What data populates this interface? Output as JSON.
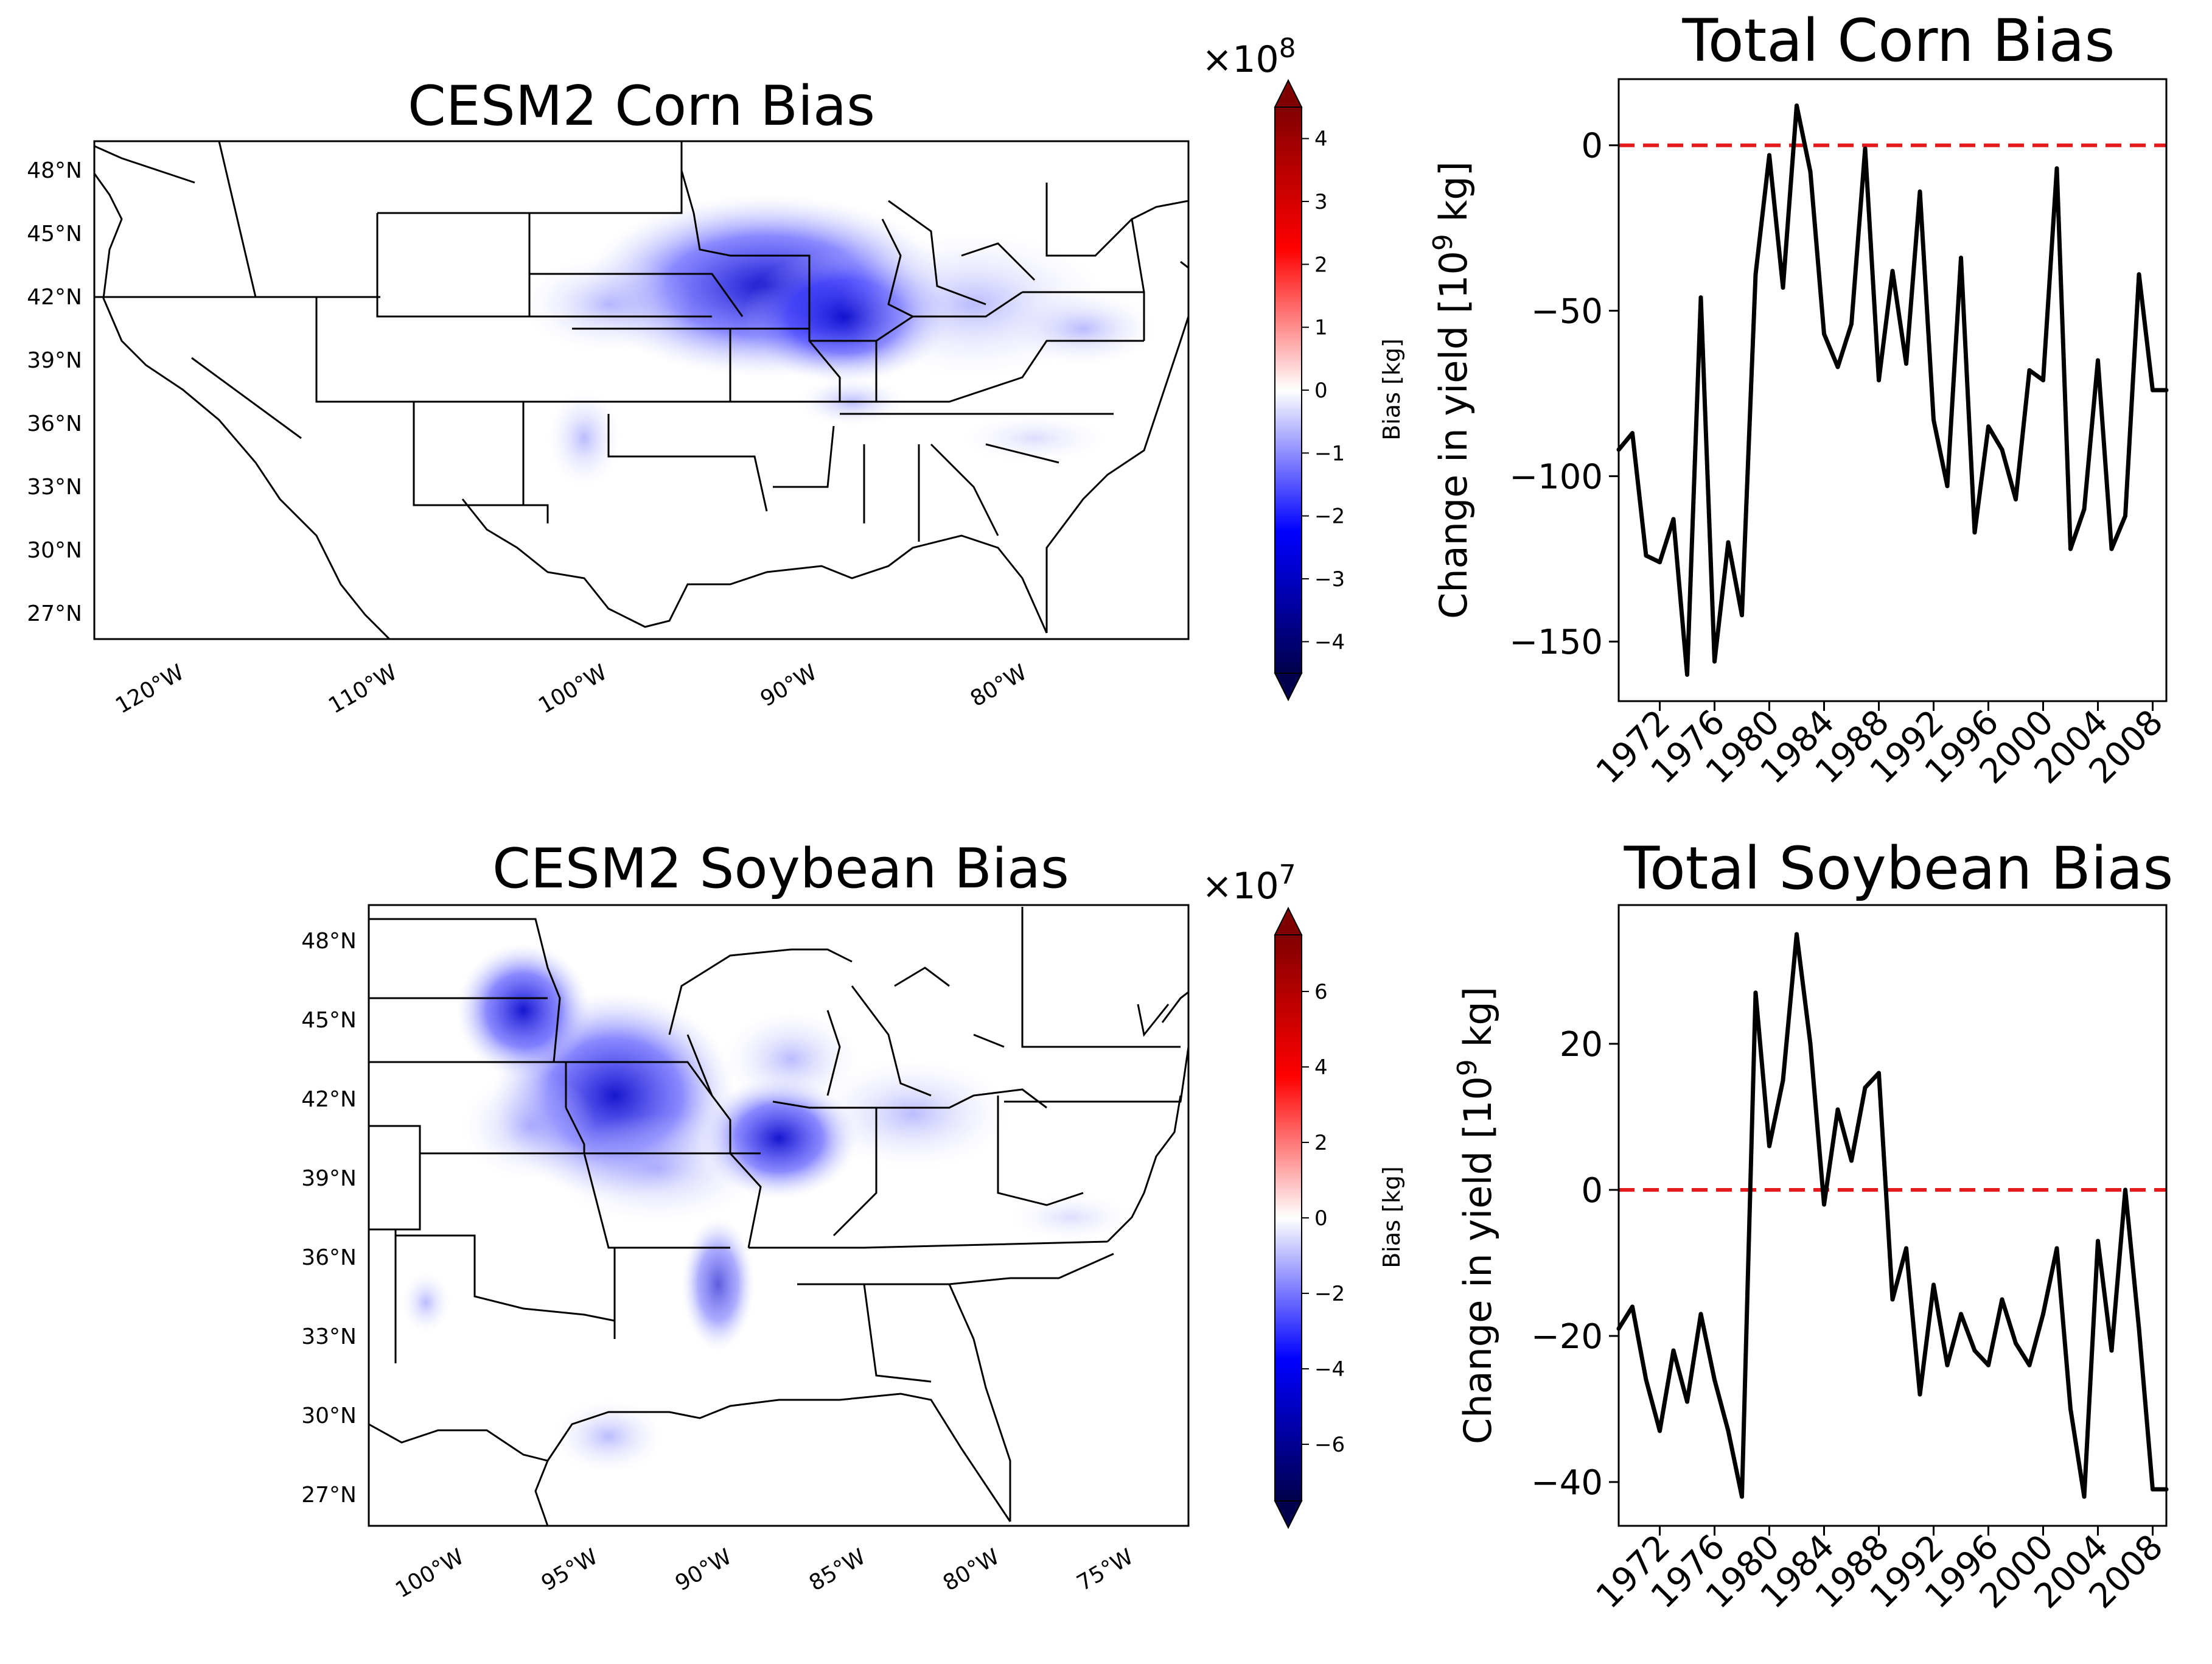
{
  "maps": [
    {
      "title": "CESM2 Corn Bias",
      "lat_ticks": [
        "48°N",
        "45°N",
        "42°N",
        "39°N",
        "36°N",
        "33°N",
        "30°N",
        "27°N"
      ],
      "lon_ticks": [
        "120°W",
        "110°W",
        "100°W",
        "90°W",
        "80°W"
      ],
      "colorbar": {
        "exponent": "×10",
        "exponent_power": "8",
        "label": "Bias [kg]",
        "ticks": [
          "4",
          "3",
          "2",
          "1",
          "0",
          "−1",
          "−2",
          "−3",
          "−4"
        ],
        "range": [
          -4.5,
          4.5
        ]
      }
    },
    {
      "title": "CESM2 Soybean Bias",
      "lat_ticks": [
        "48°N",
        "45°N",
        "42°N",
        "39°N",
        "36°N",
        "33°N",
        "30°N",
        "27°N"
      ],
      "lon_ticks": [
        "100°W",
        "95°W",
        "90°W",
        "85°W",
        "80°W",
        "75°W"
      ],
      "colorbar": {
        "exponent": "×10",
        "exponent_power": "7",
        "label": "Bias [kg]",
        "ticks": [
          "6",
          "4",
          "2",
          "0",
          "−2",
          "−4",
          "−6"
        ],
        "range": [
          -7.5,
          7.5
        ]
      }
    }
  ],
  "chart_data": [
    {
      "type": "line",
      "title": "Total Corn Bias",
      "ylabel_prefix": "Change in yield [10",
      "ylabel_power": "9",
      "ylabel_suffix": " kg]",
      "ylim": [
        -168,
        20
      ],
      "xlim": [
        1969,
        2009
      ],
      "yticks": [
        "0",
        "−50",
        "−100",
        "−150"
      ],
      "ytick_values": [
        0,
        -50,
        -100,
        -150
      ],
      "xticks": [
        "1972",
        "1976",
        "1980",
        "1984",
        "1988",
        "1992",
        "1996",
        "2000",
        "2004",
        "2008"
      ],
      "xtick_values": [
        1972,
        1976,
        1980,
        1984,
        1988,
        1992,
        1996,
        2000,
        2004,
        2008
      ],
      "reference_line": 0,
      "reference_color": "#e41a1c",
      "line_color": "#000000",
      "x": [
        1969,
        1970,
        1971,
        1972,
        1973,
        1974,
        1975,
        1976,
        1977,
        1978,
        1979,
        1980,
        1981,
        1982,
        1983,
        1984,
        1985,
        1986,
        1987,
        1988,
        1989,
        1990,
        1991,
        1992,
        1993,
        1994,
        1995,
        1996,
        1997,
        1998,
        1999,
        2000,
        2001,
        2002,
        2003,
        2004,
        2005,
        2006,
        2007,
        2008,
        2009
      ],
      "values": [
        -92,
        -87,
        -124,
        -126,
        -113,
        -160,
        -46,
        -156,
        -120,
        -142,
        -39,
        -3,
        -43,
        12,
        -8,
        -57,
        -67,
        -54,
        -1,
        -71,
        -38,
        -66,
        -14,
        -83,
        -103,
        -34,
        -117,
        -85,
        -92,
        -107,
        -68,
        -71,
        -7,
        -122,
        -110,
        -65,
        -122,
        -112,
        -39,
        -74,
        -74
      ]
    },
    {
      "type": "line",
      "title": "Total Soybean Bias",
      "ylabel_prefix": "Change in yield [10",
      "ylabel_power": "9",
      "ylabel_suffix": " kg]",
      "ylim": [
        -46,
        39
      ],
      "xlim": [
        1969,
        2009
      ],
      "yticks": [
        "20",
        "0",
        "−20",
        "−40"
      ],
      "ytick_values": [
        20,
        0,
        -20,
        -40
      ],
      "xticks": [
        "1972",
        "1976",
        "1980",
        "1984",
        "1988",
        "1992",
        "1996",
        "2000",
        "2004",
        "2008"
      ],
      "xtick_values": [
        1972,
        1976,
        1980,
        1984,
        1988,
        1992,
        1996,
        2000,
        2004,
        2008
      ],
      "reference_line": 0,
      "reference_color": "#e41a1c",
      "line_color": "#000000",
      "x": [
        1969,
        1970,
        1971,
        1972,
        1973,
        1974,
        1975,
        1976,
        1977,
        1978,
        1979,
        1980,
        1981,
        1982,
        1983,
        1984,
        1985,
        1986,
        1987,
        1988,
        1989,
        1990,
        1991,
        1992,
        1993,
        1994,
        1995,
        1996,
        1997,
        1998,
        1999,
        2000,
        2001,
        2002,
        2003,
        2004,
        2005,
        2006,
        2007,
        2008,
        2009
      ],
      "values": [
        -19,
        -16,
        -26,
        -33,
        -22,
        -29,
        -17,
        -26,
        -33,
        -42,
        27,
        6,
        15,
        35,
        20,
        -2,
        11,
        4,
        14,
        16,
        -15,
        -8,
        -28,
        -13,
        -24,
        -17,
        -22,
        -24,
        -15,
        -21,
        -24,
        -17,
        -8,
        -30,
        -42,
        -7,
        -22,
        0,
        -19,
        -41,
        -41
      ]
    }
  ]
}
